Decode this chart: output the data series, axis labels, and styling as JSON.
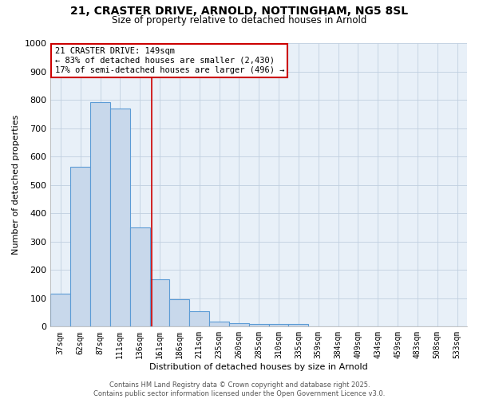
{
  "title_line1": "21, CRASTER DRIVE, ARNOLD, NOTTINGHAM, NG5 8SL",
  "title_line2": "Size of property relative to detached houses in Arnold",
  "xlabel": "Distribution of detached houses by size in Arnold",
  "ylabel": "Number of detached properties",
  "categories": [
    "37sqm",
    "62sqm",
    "87sqm",
    "111sqm",
    "136sqm",
    "161sqm",
    "186sqm",
    "211sqm",
    "235sqm",
    "260sqm",
    "285sqm",
    "310sqm",
    "335sqm",
    "359sqm",
    "384sqm",
    "409sqm",
    "434sqm",
    "459sqm",
    "483sqm",
    "508sqm",
    "533sqm"
  ],
  "values": [
    115,
    565,
    793,
    770,
    350,
    168,
    98,
    54,
    18,
    12,
    10,
    8,
    8,
    0,
    0,
    0,
    0,
    0,
    0,
    0,
    0
  ],
  "bar_color": "#c8d8eb",
  "bar_edge_color": "#5b9bd5",
  "grid_color": "#c0cfe0",
  "plot_bg_color": "#e8f0f8",
  "fig_bg_color": "#ffffff",
  "annotation_box_color": "#cc0000",
  "annotation_line1": "21 CRASTER DRIVE: 149sqm",
  "annotation_line2": "← 83% of detached houses are smaller (2,430)",
  "annotation_line3": "17% of semi-detached houses are larger (496) →",
  "property_line_x": 4.6,
  "ylim": [
    0,
    1000
  ],
  "yticks": [
    0,
    100,
    200,
    300,
    400,
    500,
    600,
    700,
    800,
    900,
    1000
  ],
  "footer_line1": "Contains HM Land Registry data © Crown copyright and database right 2025.",
  "footer_line2": "Contains public sector information licensed under the Open Government Licence v3.0."
}
